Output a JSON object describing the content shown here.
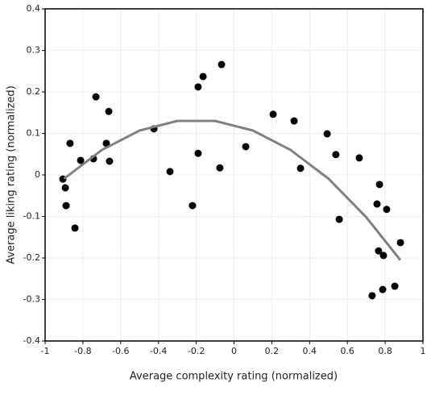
{
  "chart_data": {
    "type": "scatter",
    "x_label": "Average complexity rating (normalized)",
    "y_label": "Average liking rating (normalized)",
    "xlim": [
      -1,
      1
    ],
    "xticks": [
      -1,
      -0.8,
      -0.6,
      -0.4,
      -0.2,
      0,
      0.2,
      0.4,
      0.6,
      0.8,
      1
    ],
    "ylim": [
      -0.4,
      0.4
    ],
    "yticks": [
      0.4,
      0.3,
      0.2,
      0.1,
      0,
      -0.1,
      -0.2,
      -0.3,
      -0.4
    ],
    "grid": true,
    "series": [
      {
        "color": "#000000",
        "x": [
          -0.906,
          -0.893,
          -0.889,
          -0.868,
          -0.842,
          -0.812,
          -0.731,
          -0.744,
          -0.676,
          -0.663,
          -0.659,
          -0.424,
          -0.339,
          -0.22,
          -0.19,
          -0.19,
          -0.164,
          -0.075,
          -0.066,
          0.062,
          0.207,
          0.318,
          0.352,
          0.493,
          0.539,
          0.557,
          0.663,
          0.731,
          0.757,
          0.77,
          0.765,
          0.791,
          0.787,
          0.808,
          0.851,
          0.881
        ],
        "values": [
          -0.01,
          -0.031,
          -0.074,
          0.076,
          -0.128,
          0.035,
          0.188,
          0.039,
          0.076,
          0.153,
          0.033,
          0.111,
          0.008,
          -0.074,
          0.212,
          0.052,
          0.237,
          0.017,
          0.266,
          0.068,
          0.146,
          0.13,
          0.016,
          0.099,
          0.049,
          -0.107,
          0.041,
          -0.291,
          -0.07,
          -0.023,
          -0.183,
          -0.194,
          -0.276,
          -0.083,
          -0.268,
          -0.163
        ]
      }
    ],
    "fit": {
      "color": "#808080",
      "x": [
        -0.9,
        -0.7,
        -0.5,
        -0.3,
        -0.1,
        0.1,
        0.3,
        0.5,
        0.7,
        0.88
      ],
      "values": [
        -0.009,
        0.06,
        0.107,
        0.13,
        0.13,
        0.107,
        0.06,
        -0.009,
        -0.102,
        -0.205
      ]
    }
  }
}
